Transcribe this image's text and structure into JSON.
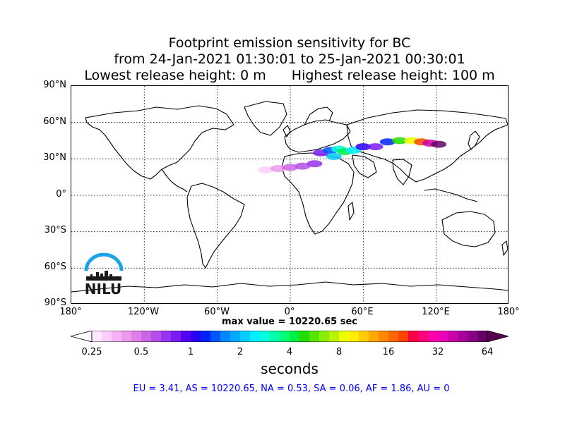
{
  "title": {
    "line1": "Footprint emission sensitivity for BC",
    "line2": "from 24-Jan-2021 01:30:01 to 25-Jan-2021 00:30:01",
    "line3_left": "Lowest release height: 0 m",
    "line3_right": "Highest release height: 100 m"
  },
  "map": {
    "projection": "equirectangular",
    "lon_range": [
      -180,
      180
    ],
    "lat_range": [
      -90,
      90
    ],
    "grid": true,
    "lat_labels": [
      "90°N",
      "60°N",
      "30°N",
      "0°",
      "30°S",
      "60°S",
      "90°S"
    ],
    "lon_labels": [
      "180°",
      "120°W",
      "60°W",
      "0°",
      "60°E",
      "120°E",
      "180°"
    ]
  },
  "max_value_label": "max value = 10220.65 sec",
  "colorbar": {
    "ticks": [
      "0.25",
      "0.5",
      "1",
      "2",
      "4",
      "8",
      "16",
      "32",
      "64"
    ],
    "units": "seconds",
    "scale": "log",
    "extend": "both",
    "colors": [
      "#ffe6ff",
      "#ffccff",
      "#f5b3f5",
      "#eb99eb",
      "#e080e6",
      "#cc66e6",
      "#b34deb",
      "#9933f0",
      "#7a1af5",
      "#5500f5",
      "#2a00f5",
      "#0022ff",
      "#0055ff",
      "#0088ff",
      "#00aaff",
      "#00ccff",
      "#00eeff",
      "#00ffdd",
      "#00ffaa",
      "#00ff77",
      "#00ee44",
      "#22dd00",
      "#55e600",
      "#88ee00",
      "#bbf200",
      "#eeff00",
      "#ffee00",
      "#ffcc00",
      "#ffaa00",
      "#ff8800",
      "#ff6600",
      "#ff4400",
      "#ff0044",
      "#ff0077",
      "#ff00aa",
      "#ee00bb",
      "#cc00aa",
      "#aa0099",
      "#880088",
      "#660066"
    ]
  },
  "stats": "EU = 3.41,  AS = 10220.65,  NA = 0.53,  SA = 0.06,  AF = 1.86,  AU = 0",
  "logo": {
    "text": "NILU"
  },
  "plume": {
    "description_units": "seconds",
    "patches": [
      {
        "lon": -20,
        "lat": 21,
        "value": 0.3
      },
      {
        "lon": -10,
        "lat": 22,
        "value": 0.4
      },
      {
        "lon": 0,
        "lat": 23,
        "value": 0.5
      },
      {
        "lon": 10,
        "lat": 24,
        "value": 0.6
      },
      {
        "lon": 20,
        "lat": 26,
        "value": 0.7
      },
      {
        "lon": 25,
        "lat": 35,
        "value": 0.8
      },
      {
        "lon": 33,
        "lat": 37,
        "value": 1.5
      },
      {
        "lon": 36,
        "lat": 32,
        "value": 2.0
      },
      {
        "lon": 40,
        "lat": 38,
        "value": 3.0
      },
      {
        "lon": 45,
        "lat": 36,
        "value": 4.0
      },
      {
        "lon": 52,
        "lat": 37,
        "value": 2.5
      },
      {
        "lon": 60,
        "lat": 40,
        "value": 1.0
      },
      {
        "lon": 70,
        "lat": 40,
        "value": 0.8
      },
      {
        "lon": 80,
        "lat": 44,
        "value": 1.2
      },
      {
        "lon": 90,
        "lat": 45,
        "value": 5.0
      },
      {
        "lon": 100,
        "lat": 45,
        "value": 9.0
      },
      {
        "lon": 108,
        "lat": 44,
        "value": 20.0
      },
      {
        "lon": 115,
        "lat": 43,
        "value": 40.0
      },
      {
        "lon": 122,
        "lat": 42,
        "value": 64.0
      }
    ]
  }
}
